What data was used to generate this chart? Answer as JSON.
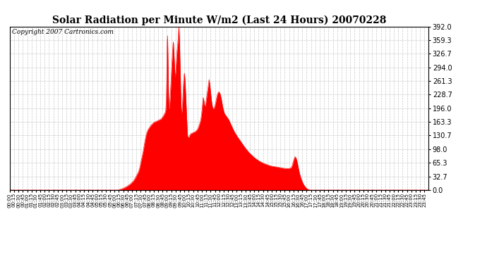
{
  "title": "Solar Radiation per Minute W/m2 (Last 24 Hours) 20070228",
  "copyright": "Copyright 2007 Cartronics.com",
  "y_ticks": [
    0.0,
    32.7,
    65.3,
    98.0,
    130.7,
    163.3,
    196.0,
    228.7,
    261.3,
    294.0,
    326.7,
    359.3,
    392.0
  ],
  "ymax": 392.0,
  "ymin": 0.0,
  "fill_color": "#ff0000",
  "line_color": "#ff0000",
  "background_color": "#ffffff",
  "grid_color": "#bbbbbb",
  "dashed_line_color": "#ff0000",
  "title_fontsize": 10,
  "copyright_fontsize": 6.5,
  "keypoints": [
    [
      0,
      0
    ],
    [
      374,
      0
    ],
    [
      375,
      1
    ],
    [
      385,
      3
    ],
    [
      395,
      6
    ],
    [
      405,
      10
    ],
    [
      415,
      15
    ],
    [
      425,
      22
    ],
    [
      432,
      30
    ],
    [
      438,
      38
    ],
    [
      443,
      45
    ],
    [
      447,
      55
    ],
    [
      450,
      65
    ],
    [
      453,
      75
    ],
    [
      456,
      85
    ],
    [
      459,
      95
    ],
    [
      462,
      108
    ],
    [
      465,
      120
    ],
    [
      468,
      130
    ],
    [
      471,
      138
    ],
    [
      474,
      143
    ],
    [
      477,
      147
    ],
    [
      480,
      150
    ],
    [
      483,
      153
    ],
    [
      486,
      156
    ],
    [
      489,
      158
    ],
    [
      492,
      160
    ],
    [
      495,
      162
    ],
    [
      498,
      163
    ],
    [
      501,
      164
    ],
    [
      504,
      165
    ],
    [
      507,
      166
    ],
    [
      510,
      167
    ],
    [
      513,
      168
    ],
    [
      516,
      169
    ],
    [
      519,
      170
    ],
    [
      522,
      172
    ],
    [
      525,
      175
    ],
    [
      528,
      178
    ],
    [
      531,
      182
    ],
    [
      534,
      186
    ],
    [
      536,
      192
    ],
    [
      538,
      220
    ],
    [
      539,
      260
    ],
    [
      540,
      320
    ],
    [
      541,
      355
    ],
    [
      542,
      370
    ],
    [
      543,
      345
    ],
    [
      544,
      300
    ],
    [
      545,
      250
    ],
    [
      546,
      220
    ],
    [
      547,
      200
    ],
    [
      548,
      195
    ],
    [
      549,
      198
    ],
    [
      550,
      210
    ],
    [
      551,
      220
    ],
    [
      552,
      235
    ],
    [
      553,
      248
    ],
    [
      554,
      260
    ],
    [
      555,
      275
    ],
    [
      556,
      290
    ],
    [
      557,
      305
    ],
    [
      558,
      315
    ],
    [
      559,
      330
    ],
    [
      560,
      340
    ],
    [
      561,
      350
    ],
    [
      562,
      355
    ],
    [
      563,
      348
    ],
    [
      564,
      335
    ],
    [
      565,
      318
    ],
    [
      566,
      300
    ],
    [
      567,
      285
    ],
    [
      568,
      270
    ],
    [
      569,
      275
    ],
    [
      570,
      280
    ],
    [
      571,
      290
    ],
    [
      572,
      302
    ],
    [
      573,
      315
    ],
    [
      574,
      325
    ],
    [
      575,
      335
    ],
    [
      576,
      342
    ],
    [
      577,
      350
    ],
    [
      578,
      358
    ],
    [
      579,
      370
    ],
    [
      580,
      385
    ],
    [
      581,
      392
    ],
    [
      582,
      380
    ],
    [
      583,
      360
    ],
    [
      584,
      335
    ],
    [
      585,
      305
    ],
    [
      586,
      275
    ],
    [
      587,
      248
    ],
    [
      588,
      220
    ],
    [
      589,
      200
    ],
    [
      590,
      188
    ],
    [
      591,
      185
    ],
    [
      592,
      190
    ],
    [
      593,
      200
    ],
    [
      594,
      215
    ],
    [
      595,
      230
    ],
    [
      596,
      245
    ],
    [
      597,
      258
    ],
    [
      598,
      268
    ],
    [
      599,
      275
    ],
    [
      600,
      280
    ],
    [
      601,
      275
    ],
    [
      602,
      265
    ],
    [
      603,
      252
    ],
    [
      604,
      238
    ],
    [
      605,
      222
    ],
    [
      606,
      205
    ],
    [
      607,
      188
    ],
    [
      608,
      170
    ],
    [
      609,
      155
    ],
    [
      610,
      140
    ],
    [
      611,
      130
    ],
    [
      612,
      128
    ],
    [
      613,
      127
    ],
    [
      614,
      126
    ],
    [
      615,
      126
    ],
    [
      616,
      127
    ],
    [
      617,
      128
    ],
    [
      618,
      130
    ],
    [
      619,
      132
    ],
    [
      620,
      133
    ],
    [
      621,
      134
    ],
    [
      622,
      135
    ],
    [
      625,
      136
    ],
    [
      628,
      137
    ],
    [
      631,
      138
    ],
    [
      634,
      139
    ],
    [
      637,
      140
    ],
    [
      640,
      142
    ],
    [
      643,
      144
    ],
    [
      646,
      147
    ],
    [
      649,
      152
    ],
    [
      652,
      158
    ],
    [
      655,
      165
    ],
    [
      657,
      172
    ],
    [
      659,
      182
    ],
    [
      661,
      195
    ],
    [
      663,
      210
    ],
    [
      665,
      222
    ],
    [
      667,
      215
    ],
    [
      669,
      205
    ],
    [
      671,
      200
    ],
    [
      673,
      205
    ],
    [
      675,
      215
    ],
    [
      677,
      225
    ],
    [
      679,
      235
    ],
    [
      681,
      245
    ],
    [
      683,
      255
    ],
    [
      685,
      265
    ],
    [
      687,
      255
    ],
    [
      689,
      242
    ],
    [
      691,
      228
    ],
    [
      693,
      215
    ],
    [
      695,
      205
    ],
    [
      697,
      198
    ],
    [
      699,
      195
    ],
    [
      701,
      195
    ],
    [
      703,
      198
    ],
    [
      705,
      202
    ],
    [
      707,
      208
    ],
    [
      709,
      215
    ],
    [
      711,
      222
    ],
    [
      713,
      228
    ],
    [
      715,
      232
    ],
    [
      717,
      235
    ],
    [
      719,
      235
    ],
    [
      721,
      233
    ],
    [
      723,
      230
    ],
    [
      725,
      225
    ],
    [
      727,
      218
    ],
    [
      729,
      210
    ],
    [
      731,
      202
    ],
    [
      733,
      195
    ],
    [
      735,
      190
    ],
    [
      737,
      185
    ],
    [
      739,
      182
    ],
    [
      741,
      180
    ],
    [
      743,
      178
    ],
    [
      745,
      176
    ],
    [
      747,
      174
    ],
    [
      749,
      172
    ],
    [
      751,
      170
    ],
    [
      753,
      168
    ],
    [
      755,
      165
    ],
    [
      758,
      160
    ],
    [
      762,
      154
    ],
    [
      766,
      148
    ],
    [
      770,
      142
    ],
    [
      775,
      136
    ],
    [
      780,
      130
    ],
    [
      786,
      124
    ],
    [
      792,
      118
    ],
    [
      798,
      112
    ],
    [
      804,
      106
    ],
    [
      810,
      100
    ],
    [
      816,
      95
    ],
    [
      822,
      90
    ],
    [
      828,
      86
    ],
    [
      834,
      82
    ],
    [
      840,
      78
    ],
    [
      848,
      74
    ],
    [
      856,
      70
    ],
    [
      864,
      67
    ],
    [
      872,
      64
    ],
    [
      880,
      62
    ],
    [
      888,
      60
    ],
    [
      896,
      58
    ],
    [
      904,
      57
    ],
    [
      912,
      56
    ],
    [
      920,
      55
    ],
    [
      928,
      54
    ],
    [
      936,
      53
    ],
    [
      944,
      52
    ],
    [
      952,
      52
    ],
    [
      960,
      52
    ],
    [
      965,
      53
    ],
    [
      968,
      55
    ],
    [
      971,
      60
    ],
    [
      974,
      68
    ],
    [
      977,
      75
    ],
    [
      980,
      80
    ],
    [
      983,
      78
    ],
    [
      986,
      72
    ],
    [
      989,
      62
    ],
    [
      992,
      52
    ],
    [
      995,
      42
    ],
    [
      998,
      34
    ],
    [
      1001,
      28
    ],
    [
      1004,
      22
    ],
    [
      1007,
      17
    ],
    [
      1010,
      13
    ],
    [
      1013,
      10
    ],
    [
      1016,
      7
    ],
    [
      1019,
      5
    ],
    [
      1022,
      3
    ],
    [
      1025,
      2
    ],
    [
      1028,
      1
    ],
    [
      1031,
      0
    ],
    [
      1439,
      0
    ]
  ]
}
